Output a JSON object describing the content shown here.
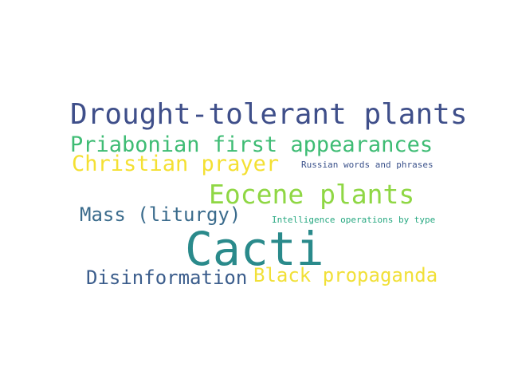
{
  "words": [
    {
      "text": "Drought-tolerant plants",
      "color": "#3f4f8a"
    },
    {
      "text": "Priabonian first appearances",
      "color": "#3ebc74"
    },
    {
      "text": "Christian prayer",
      "color": "#f4e033"
    },
    {
      "text": "Russian words and phrases",
      "color": "#3b528b"
    },
    {
      "text": "Eocene plants",
      "color": "#8fd744"
    },
    {
      "text": "Mass (liturgy)",
      "color": "#3a6b8c"
    },
    {
      "text": "Intelligence operations by type",
      "color": "#27a881"
    },
    {
      "text": "Cacti",
      "color": "#2a8a8b"
    },
    {
      "text": "Disinformation",
      "color": "#3b5d8c"
    },
    {
      "text": "Black propaganda",
      "color": "#f1e038"
    }
  ]
}
